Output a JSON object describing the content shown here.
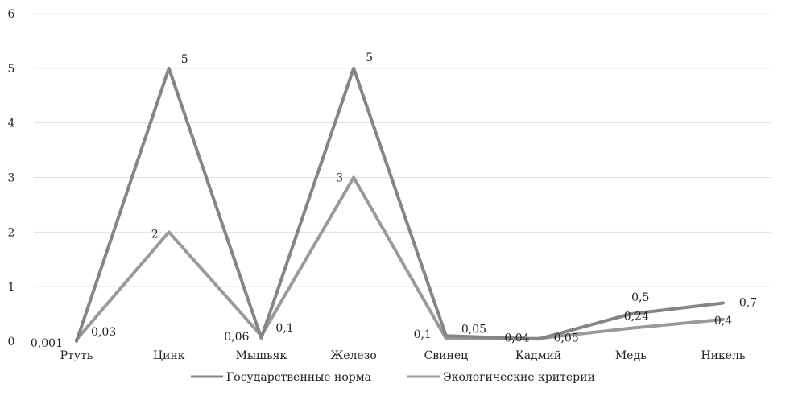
{
  "chart_data": {
    "type": "line",
    "categories": [
      "Ртуть",
      "Цинк",
      "Мышьяк",
      "Железо",
      "Свинец",
      "Кадмий",
      "Медь",
      "Никель"
    ],
    "series": [
      {
        "name": "Государственные норма",
        "color": "#858585",
        "values": [
          0.001,
          5,
          0.06,
          5,
          0.1,
          0.04,
          0.5,
          0.7
        ],
        "labels": [
          "0,001",
          "5",
          "0,06",
          "5",
          "0,1",
          "0,04",
          "0,5",
          "0,7"
        ]
      },
      {
        "name": "Экологические критерии",
        "color": "#9a9a9a",
        "values": [
          0.03,
          2,
          0.1,
          3,
          0.05,
          0.05,
          0.24,
          0.4
        ],
        "labels": [
          "0,03",
          "2",
          "0,1",
          "3",
          "0,05",
          "0,05",
          "0,24",
          "0,4"
        ]
      }
    ],
    "ylim": [
      0,
      6
    ],
    "yticks": [
      "0",
      "1",
      "2",
      "3",
      "4",
      "5",
      "6"
    ],
    "grid": true,
    "legend_position": "bottom"
  }
}
